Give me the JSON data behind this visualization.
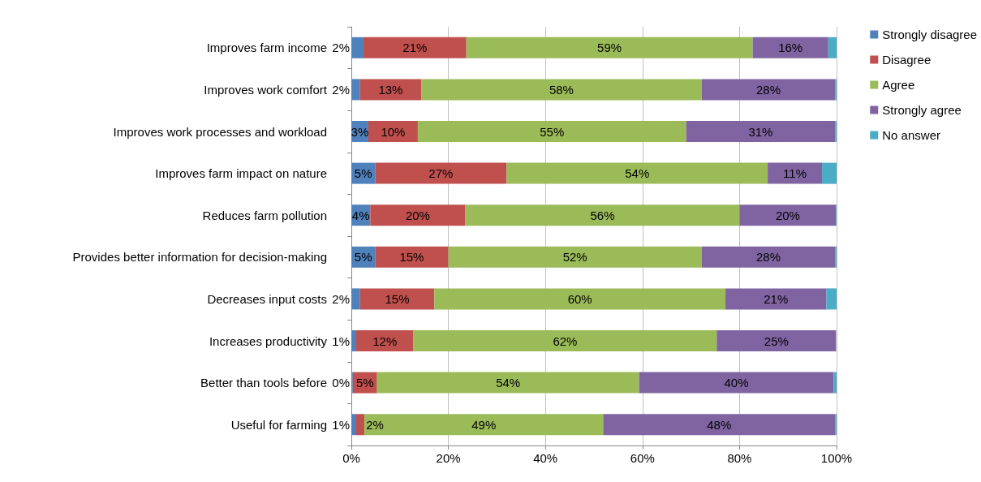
{
  "chart_data": {
    "type": "bar",
    "orientation": "horizontal",
    "stacked": true,
    "categories": [
      "Improves farm income",
      "Improves work comfort",
      "Improves work processes and workload",
      "Improves farm impact on nature",
      "Reduces farm pollution",
      "Provides better information for decision-making",
      "Decreases input costs",
      "Increases productivity",
      "Better than tools before",
      "Useful for farming"
    ],
    "series": [
      {
        "name": "Strongly disagree",
        "color": "#4f81bd",
        "values": [
          2.5,
          1.8,
          3.5,
          4.9,
          3.9,
          4.9,
          1.8,
          1.0,
          0.3,
          1.0
        ],
        "value_labels": [
          "2%",
          "2%",
          "3%",
          "5%",
          "4%",
          "5%",
          "2%",
          "1%",
          "0%",
          "1%"
        ]
      },
      {
        "name": "Disagree",
        "color": "#c0504d",
        "values": [
          21.2,
          12.6,
          10.2,
          27.1,
          19.6,
          15.1,
          15.3,
          11.8,
          5.0,
          1.7
        ],
        "value_labels": [
          "21%",
          "13%",
          "10%",
          "27%",
          "20%",
          "15%",
          "15%",
          "12%",
          "5%",
          "2%"
        ]
      },
      {
        "name": "Agree",
        "color": "#9bbb59",
        "values": [
          59.0,
          57.8,
          55.3,
          53.8,
          56.5,
          52.2,
          60.0,
          62.5,
          54.0,
          49.2
        ],
        "value_labels": [
          "59%",
          "58%",
          "55%",
          "54%",
          "56%",
          "52%",
          "60%",
          "62%",
          "54%",
          "49%"
        ]
      },
      {
        "name": "Strongly agree",
        "color": "#8064a2",
        "values": [
          15.6,
          27.5,
          30.7,
          11.2,
          19.9,
          27.5,
          20.8,
          24.6,
          40.1,
          47.8
        ],
        "value_labels": [
          "16%",
          "28%",
          "31%",
          "11%",
          "20%",
          "28%",
          "21%",
          "25%",
          "40%",
          "48%"
        ]
      },
      {
        "name": "No answer",
        "color": "#4bacc6",
        "values": [
          1.7,
          0.3,
          0.3,
          3.0,
          0.1,
          0.3,
          2.1,
          0,
          0.6,
          0.3
        ]
      }
    ],
    "xlim": [
      0,
      100
    ],
    "xticks": [
      {
        "value": 0,
        "label": "0%"
      },
      {
        "value": 20,
        "label": "20%"
      },
      {
        "value": 40,
        "label": "40%"
      },
      {
        "value": 60,
        "label": "60%"
      },
      {
        "value": 80,
        "label": "80%"
      },
      {
        "value": 100,
        "label": "100%"
      }
    ],
    "grid": "x",
    "legend": "right"
  }
}
